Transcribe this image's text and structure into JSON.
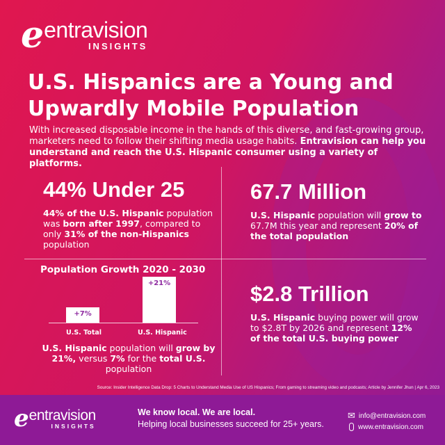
{
  "brand": {
    "name": "entravision",
    "sub": "INSIGHTS",
    "e": "e"
  },
  "title": "U.S. Hispanics are a Young and Upwardly Mobile Population",
  "intro": {
    "plain": "With increased disposable income in the hands of this diverse, and fast-growing group, marketers need to follow their shifting media usage habits. ",
    "bold": "Entravision can help you understand and reach the U.S. Hispanic consumer using a variety of platforms."
  },
  "stats": {
    "young": {
      "headline": "44% Under 25",
      "t1": "44% of the U.S. Hispanic",
      "t2": " population was ",
      "t3": "born after 1997",
      ", ": "",
      "t4": ", compared to only ",
      "t5": "31% of the non-Hispanics",
      "t6": " population"
    },
    "population": {
      "headline": "67.7 Million",
      "t1": "U.S. Hispanic",
      "t2": " population will ",
      "t3": "grow to",
      "t4": " 67.7M this year and represent ",
      "t5": "20% of the total population"
    },
    "buying": {
      "headline": "$2.8 Trillion",
      "t1": "U.S. Hispanic",
      "t2": " buying power will grow to $2.8T by 2026 and represent ",
      "t3": "12% of the total U.S. buying power"
    }
  },
  "chart_data": {
    "type": "bar",
    "title": "Population Growth 2020 - 2030",
    "categories": [
      "U.S. Total",
      "U.S. Hispanic"
    ],
    "values": [
      7,
      21
    ],
    "data_labels": [
      "+7%",
      "+21%"
    ],
    "unit": "%",
    "caption": {
      "t1": "U.S. Hispanic",
      "t2": " population will ",
      "t3": "grow by 21%,",
      "t4": " versus ",
      "t5": "7%",
      "t6": " for the ",
      "t7": "total U.S.",
      "t8": " population"
    }
  },
  "source": "Source: Insider Intelligence Data Drop: 5 Charts to Understand Media Use of US Hispanics; From gaming to streaming video and podcasts; Article by Jennifer Jhun  |  Apr 6, 2023",
  "footer": {
    "tagline": "We know local. We are local.",
    "sub": "Helping local businesses succeed for 25+ years.",
    "email": "info@entravision.com",
    "web": "www.entravision.com"
  },
  "colors": {
    "crimson": "#e0174f",
    "purple": "#8e1a96",
    "bar_label": "#8e2aa0"
  }
}
